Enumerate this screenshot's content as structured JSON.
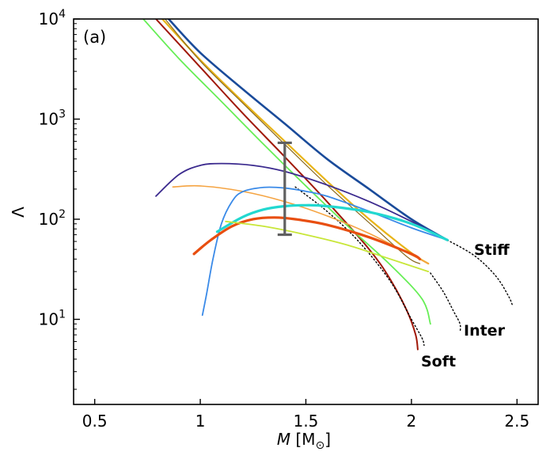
{
  "chart_data": {
    "type": "line",
    "panel_label": "(a)",
    "xlabel": "M [M⊙]",
    "xlabel_var": "M",
    "xlabel_unit": "[M",
    "xlabel_sub": "⊙",
    "xlabel_close": "]",
    "ylabel": "Λ",
    "xlim": [
      0.4,
      2.6
    ],
    "ylim_log10": [
      0.15,
      4.0
    ],
    "y_scale": "log",
    "xticks": [
      {
        "value": 0.5,
        "label": "0.5"
      },
      {
        "value": 1.0,
        "label": "1"
      },
      {
        "value": 1.5,
        "label": "1.5"
      },
      {
        "value": 2.0,
        "label": "2"
      },
      {
        "value": 2.5,
        "label": "2.5"
      }
    ],
    "yticks": [
      {
        "exp": 1,
        "base": "10",
        "sup": "1"
      },
      {
        "exp": 2,
        "base": "10",
        "sup": "2"
      },
      {
        "exp": 3,
        "base": "10",
        "sup": "3"
      },
      {
        "exp": 4,
        "base": "10",
        "sup": "4"
      }
    ],
    "annotations": [
      {
        "text": "Stiff",
        "x": 2.3,
        "y": 48
      },
      {
        "text": "Inter",
        "x": 2.25,
        "y": 7.6
      },
      {
        "text": "Soft",
        "x": 2.05,
        "y": 3.9
      }
    ],
    "error_bar": {
      "x": 1.4,
      "y_low": 70,
      "y_high": 580,
      "color": "#606060"
    },
    "series": [
      {
        "name": "dark-blue",
        "color": "#1a4b9a",
        "width": 2.6,
        "dash": "",
        "x": [
          0.85,
          1.0,
          1.2,
          1.4,
          1.6,
          1.8,
          2.0,
          2.17
        ],
        "y": [
          10000,
          4600,
          2000,
          900,
          400,
          200,
          100,
          62
        ]
      },
      {
        "name": "gold",
        "color": "#e8b418",
        "width": 2.2,
        "dash": "",
        "x": [
          0.82,
          1.0,
          1.2,
          1.4,
          1.6,
          1.8,
          2.0,
          2.08
        ],
        "y": [
          10000,
          3900,
          1500,
          600,
          240,
          100,
          46,
          36
        ]
      },
      {
        "name": "tan-double",
        "color": "#8a6a20",
        "width": 1.2,
        "dash": "",
        "x": [
          0.83,
          1.0,
          1.2,
          1.4,
          1.6,
          1.8,
          1.98,
          2.04
        ],
        "y": [
          10200,
          3800,
          1450,
          560,
          220,
          92,
          42,
          36
        ]
      },
      {
        "name": "dark-red",
        "color": "#a01808",
        "width": 2.0,
        "dash": "",
        "x": [
          0.79,
          1.0,
          1.2,
          1.4,
          1.6,
          1.8,
          1.9,
          1.98,
          2.02,
          2.03
        ],
        "y": [
          10000,
          3300,
          1150,
          420,
          150,
          50,
          25,
          12,
          7,
          5
        ]
      },
      {
        "name": "green",
        "color": "#66ee55",
        "width": 1.8,
        "dash": "",
        "x": [
          0.73,
          0.9,
          1.1,
          1.3,
          1.5,
          1.7,
          1.9,
          2.05,
          2.09
        ],
        "y": [
          10000,
          4000,
          1500,
          560,
          215,
          85,
          35,
          16,
          9
        ]
      },
      {
        "name": "dotted-soft",
        "color": "#000000",
        "width": 1.4,
        "dash": "1.5,3",
        "x": [
          1.45,
          1.6,
          1.75,
          1.9,
          2.0,
          2.05,
          2.06
        ],
        "y": [
          210,
          120,
          60,
          24,
          10,
          6.5,
          5.5
        ]
      },
      {
        "name": "dotted-inter",
        "color": "#000000",
        "width": 1.4,
        "dash": "1.5,3",
        "x": [
          2.09,
          2.15,
          2.2,
          2.23,
          2.23
        ],
        "y": [
          29,
          19,
          12,
          9,
          7.4
        ]
      },
      {
        "name": "dotted-stiff",
        "color": "#000000",
        "width": 1.4,
        "dash": "1.5,3",
        "x": [
          2.17,
          2.3,
          2.4,
          2.46,
          2.48
        ],
        "y": [
          62,
          43,
          27,
          17,
          13.5
        ]
      },
      {
        "name": "indigo",
        "color": "#3b2a8e",
        "width": 1.8,
        "dash": "",
        "x": [
          0.79,
          0.9,
          1.0,
          1.1,
          1.25,
          1.4,
          1.6,
          1.8,
          2.0,
          2.15
        ],
        "y": [
          170,
          280,
          345,
          360,
          345,
          300,
          220,
          150,
          95,
          65
        ]
      },
      {
        "name": "orange-thin",
        "color": "#f5a442",
        "width": 1.6,
        "dash": "",
        "x": [
          0.87,
          1.0,
          1.2,
          1.4,
          1.6,
          1.8,
          2.0,
          2.08
        ],
        "y": [
          210,
          215,
          190,
          150,
          108,
          72,
          44,
          36
        ]
      },
      {
        "name": "light-blue",
        "color": "#3a8ae8",
        "width": 1.8,
        "dash": "",
        "x": [
          1.01,
          1.03,
          1.06,
          1.1,
          1.15,
          1.2,
          1.3,
          1.4,
          1.5,
          1.6,
          1.8,
          2.0,
          2.17
        ],
        "y": [
          11,
          18,
          40,
          90,
          150,
          188,
          208,
          205,
          190,
          170,
          120,
          82,
          62
        ]
      },
      {
        "name": "cyan",
        "color": "#22d8d0",
        "width": 3.2,
        "dash": "",
        "x": [
          1.08,
          1.2,
          1.3,
          1.4,
          1.5,
          1.6,
          1.8,
          2.0,
          2.17
        ],
        "y": [
          75,
          105,
          125,
          135,
          138,
          135,
          118,
          90,
          62
        ]
      },
      {
        "name": "orange-thick",
        "color": "#e84e10",
        "width": 3.2,
        "dash": "",
        "x": [
          0.97,
          1.05,
          1.15,
          1.25,
          1.35,
          1.45,
          1.6,
          1.8,
          2.0,
          2.04
        ],
        "y": [
          45,
          62,
          85,
          100,
          104,
          100,
          88,
          66,
          45,
          40
        ]
      },
      {
        "name": "yellow-green",
        "color": "#c8e638",
        "width": 1.8,
        "dash": "",
        "x": [
          1.12,
          1.3,
          1.5,
          1.7,
          1.9,
          2.08
        ],
        "y": [
          95,
          85,
          70,
          55,
          40,
          30
        ]
      }
    ]
  }
}
